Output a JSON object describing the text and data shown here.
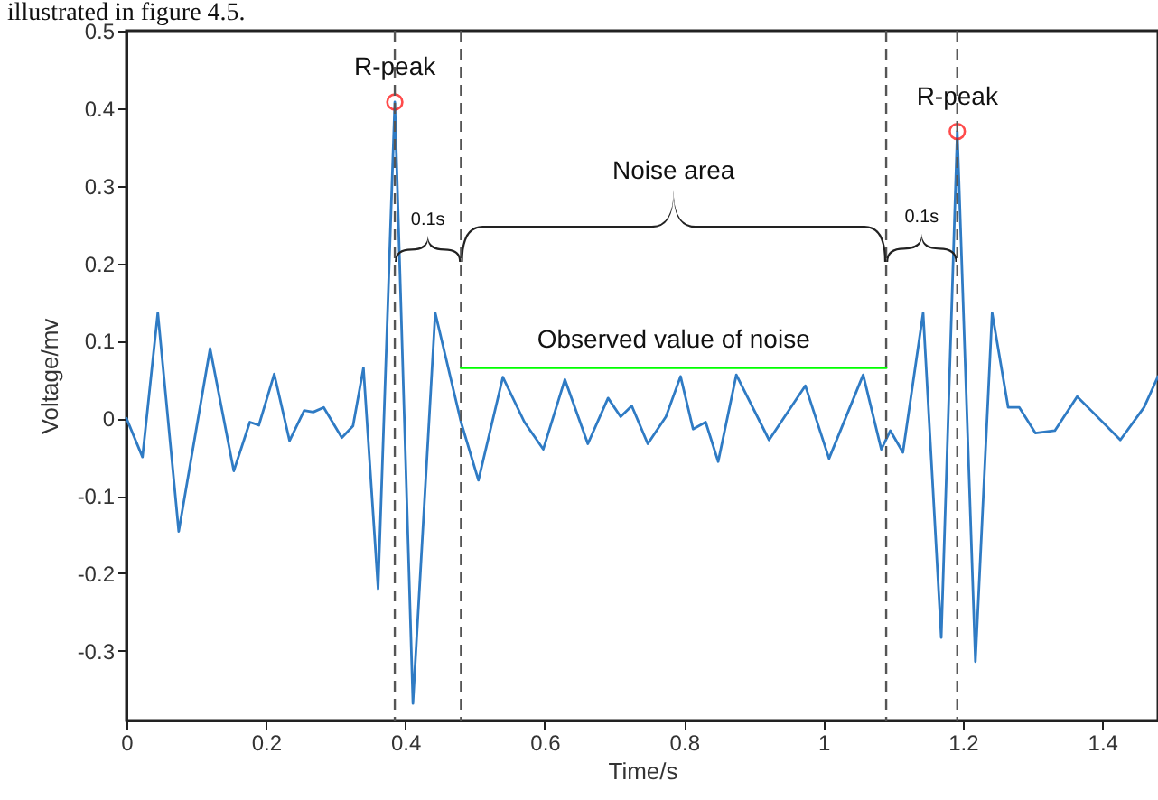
{
  "chart_data": {
    "type": "line",
    "xlabel": "Time/s",
    "ylabel": "Voltage/mv",
    "xlim": [
      0,
      1.48
    ],
    "xticks": [
      0,
      0.2,
      0.4,
      0.6,
      0.8,
      1,
      1.2,
      1.4
    ],
    "ylim": [
      -0.39,
      0.5
    ],
    "yticks": [
      -0.3,
      -0.2,
      -0.1,
      0,
      0.1,
      0.2,
      0.3,
      0.4,
      0.5
    ],
    "series": [
      {
        "color": "#2f7bc4",
        "x": [
          0,
          0.023,
          0.045,
          0.075,
          0.12,
          0.154,
          0.177,
          0.19,
          0.212,
          0.234,
          0.255,
          0.268,
          0.283,
          0.309,
          0.325,
          0.34,
          0.361,
          0.385,
          0.411,
          0.443,
          0.48,
          0.505,
          0.54,
          0.571,
          0.598,
          0.629,
          0.662,
          0.691,
          0.709,
          0.725,
          0.748,
          0.774,
          0.795,
          0.813,
          0.831,
          0.849,
          0.875,
          0.922,
          0.974,
          1.008,
          1.057,
          1.083,
          1.096,
          1.114,
          1.143,
          1.169,
          1.192,
          1.218,
          1.242,
          1.265,
          1.281,
          1.304,
          1.332,
          1.364,
          1.384,
          1.426,
          1.46,
          1.48
        ],
        "values": [
          0,
          -0.05,
          0.136,
          -0.146,
          0.09,
          -0.068,
          -0.005,
          -0.009,
          0.057,
          -0.029,
          0.01,
          0.008,
          0.014,
          -0.025,
          -0.01,
          0.065,
          -0.22,
          0.408,
          -0.368,
          0.136,
          -0.005,
          -0.08,
          0.053,
          -0.005,
          -0.04,
          0.05,
          -0.033,
          0.026,
          0.002,
          0.016,
          -0.033,
          0.002,
          0.054,
          -0.014,
          -0.005,
          -0.056,
          0.056,
          -0.028,
          0.042,
          -0.052,
          0.056,
          -0.04,
          -0.016,
          -0.044,
          0.136,
          -0.283,
          0.37,
          -0.314,
          0.136,
          0.014,
          0.014,
          -0.019,
          -0.016,
          0.028,
          0.01,
          -0.028,
          0.014,
          0.054
        ]
      },
      {
        "type": "line",
        "name": "Observed value of noise",
        "color": "#00ff00",
        "x": [
          0.48,
          1.09
        ],
        "values": [
          0.065,
          0.065
        ]
      },
      {
        "type": "scatter",
        "color": "#ff0000",
        "marker": "circle",
        "x": [
          0.385,
          1.192
        ],
        "values": [
          0.408,
          0.37
        ]
      }
    ],
    "ref_lines": [
      {
        "axis": "x",
        "value": 0.385,
        "color": "#555555",
        "line_style": "dashed"
      },
      {
        "axis": "x",
        "value": 0.48,
        "color": "#555555",
        "line_style": "dashed"
      },
      {
        "axis": "x",
        "value": 1.09,
        "color": "#555555",
        "line_style": "dashed"
      },
      {
        "axis": "x",
        "value": 1.192,
        "color": "#555555",
        "line_style": "dashed"
      }
    ],
    "annotations": [
      "illustrated in figure 4.5.",
      {
        "text": "R-peak",
        "x": 0.385,
        "y": 0.408
      },
      {
        "text": "R-peak",
        "x": 1.192,
        "y": 0.37
      },
      "0.1s",
      "Noise area",
      "0.1s"
    ]
  }
}
